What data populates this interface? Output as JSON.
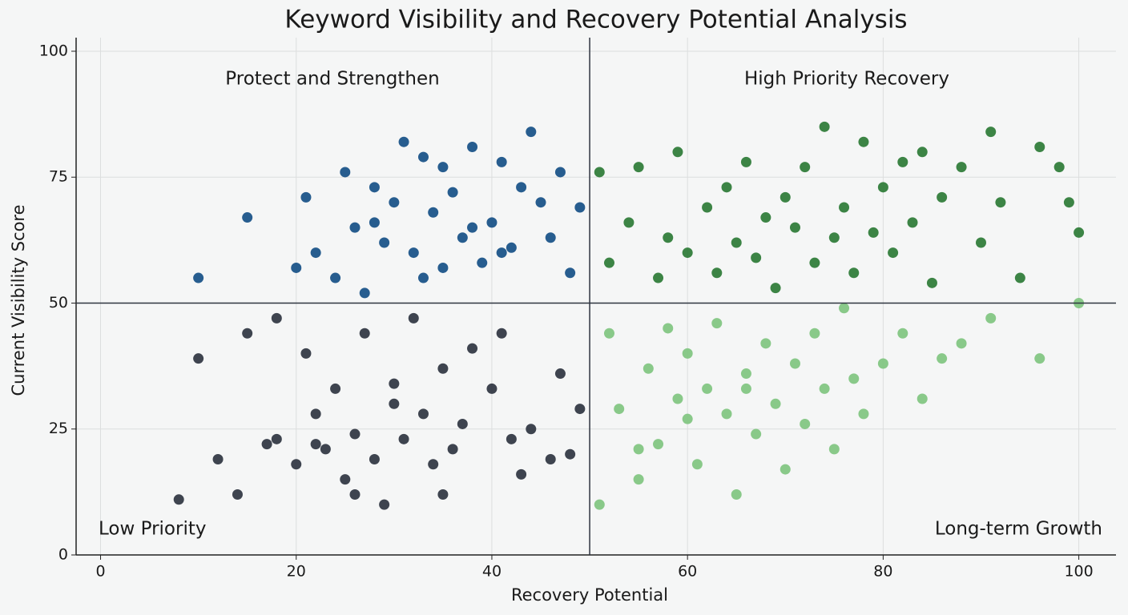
{
  "chart_data": {
    "type": "scatter",
    "title": "Keyword Visibility and Recovery Potential Analysis",
    "x_label": "Recovery Potential",
    "y_label": "Current Visibility Score",
    "xlim": [
      -2.5,
      103.8
    ],
    "ylim": [
      0,
      102.7
    ],
    "xticks": [
      0,
      20,
      40,
      60,
      80,
      100
    ],
    "yticks": [
      0,
      25,
      50,
      75,
      100
    ],
    "grid": true,
    "quadrant_split": {
      "x": 50,
      "y": 50
    },
    "quadrant_labels": [
      "Protect and Strengthen",
      "High Priority Recovery",
      "Low Priority",
      "Long-term Growth"
    ],
    "series": [
      {
        "color": "#2e3440",
        "x": [
          8,
          10,
          12,
          14,
          15,
          17,
          18,
          20,
          21,
          22,
          23,
          24,
          25,
          26,
          27,
          28,
          29,
          30,
          31,
          32,
          33,
          34,
          35,
          36,
          37,
          38,
          40,
          41,
          43,
          44,
          46,
          47,
          48,
          49,
          30,
          26,
          22,
          18,
          35,
          42
        ],
        "values": [
          11,
          39,
          19,
          12,
          44,
          22,
          47,
          18,
          40,
          22,
          21,
          33,
          15,
          24,
          44,
          19,
          10,
          34,
          23,
          47,
          28,
          18,
          37,
          21,
          26,
          41,
          33,
          44,
          16,
          25,
          19,
          36,
          20,
          29,
          30,
          12,
          28,
          23,
          12,
          23
        ]
      },
      {
        "color": "#154f86",
        "x": [
          10,
          15,
          20,
          21,
          22,
          24,
          25,
          26,
          27,
          28,
          29,
          30,
          31,
          32,
          33,
          34,
          35,
          36,
          37,
          38,
          39,
          40,
          41,
          42,
          43,
          44,
          45,
          46,
          47,
          48,
          49,
          38,
          33,
          28,
          35,
          41
        ],
        "values": [
          55,
          67,
          57,
          71,
          60,
          55,
          76,
          65,
          52,
          73,
          62,
          70,
          82,
          60,
          79,
          68,
          57,
          72,
          63,
          81,
          58,
          66,
          78,
          61,
          73,
          84,
          70,
          63,
          76,
          56,
          69,
          65,
          55,
          66,
          77,
          60
        ]
      },
      {
        "color": "#2b7a35",
        "x": [
          51,
          52,
          54,
          55,
          57,
          58,
          59,
          60,
          62,
          63,
          64,
          65,
          66,
          67,
          68,
          69,
          70,
          71,
          72,
          73,
          74,
          75,
          76,
          77,
          78,
          79,
          80,
          81,
          82,
          83,
          84,
          85,
          86,
          88,
          90,
          91,
          92,
          94,
          96,
          98,
          99,
          100
        ],
        "values": [
          76,
          58,
          66,
          77,
          55,
          63,
          80,
          60,
          69,
          56,
          73,
          62,
          78,
          59,
          67,
          53,
          71,
          65,
          77,
          58,
          85,
          63,
          69,
          56,
          82,
          64,
          73,
          60,
          78,
          66,
          80,
          54,
          71,
          77,
          62,
          84,
          70,
          55,
          81,
          77,
          70,
          64
        ]
      },
      {
        "color": "#7fc47f",
        "x": [
          51,
          52,
          53,
          55,
          56,
          57,
          58,
          59,
          60,
          61,
          62,
          63,
          64,
          65,
          66,
          67,
          68,
          69,
          70,
          71,
          72,
          73,
          74,
          75,
          76,
          77,
          78,
          80,
          82,
          84,
          86,
          88,
          91,
          96,
          100,
          66,
          60,
          55
        ],
        "values": [
          10,
          44,
          29,
          15,
          37,
          22,
          45,
          31,
          40,
          18,
          33,
          46,
          28,
          12,
          36,
          24,
          42,
          30,
          17,
          38,
          26,
          44,
          33,
          21,
          49,
          35,
          28,
          38,
          44,
          31,
          39,
          42,
          47,
          39,
          50,
          33,
          27,
          21
        ]
      }
    ]
  }
}
